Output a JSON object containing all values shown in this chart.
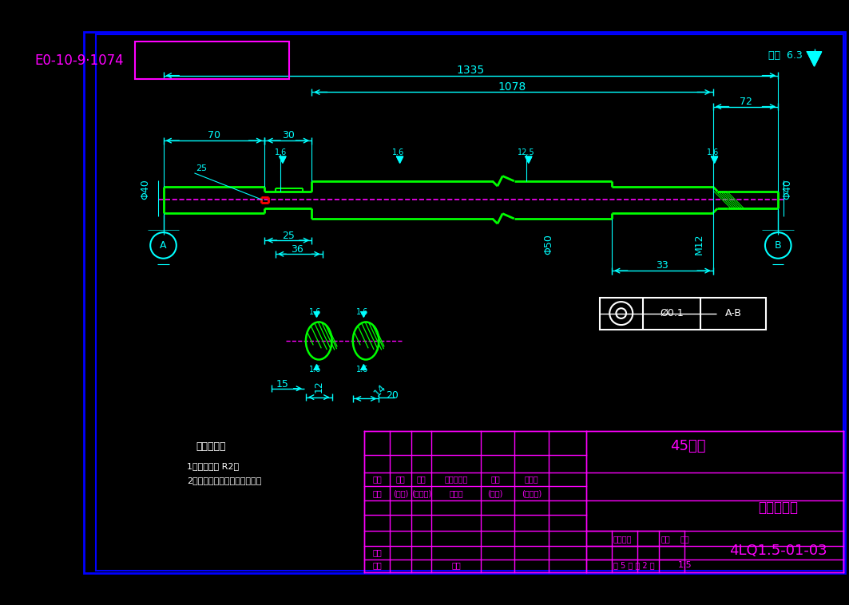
{
  "bg_color": "#000000",
  "border_color": "#0000ff",
  "cyan": "#00ffff",
  "green": "#00ff00",
  "magenta": "#ff00ff",
  "white": "#ffffff",
  "red": "#ff0000",
  "title_text": "4LQ1.5-01-03",
  "part_name": "扒龙传动轴",
  "material": "45号锢",
  "scale": "1:5",
  "sheet": "共 5 张 第 2 张",
  "tech_req_title": "技术要求：",
  "tech_req_1": "1、未注圆角 R2；",
  "tech_req_2": "2、与轴承配合处需渗碳处理。",
  "label_biaoji": "标记",
  "label_chushu": "处数",
  "label_fenqu": "分区",
  "label_gaiwen": "更改文件号",
  "label_qianming": "签名",
  "label_nianyueri": "年月日",
  "label_sheji": "设计",
  "label_qianming2": "(签名)",
  "label_nianyueri2": "(年月日)",
  "label_biaozhunhua": "标准化",
  "label_shenhe": "审核",
  "label_gongyi": "工艺",
  "label_pizhun": "批准",
  "label_jieduan": "阶段标记",
  "label_zhongliang": "重量",
  "label_bili": "比例",
  "label_qita": "其余"
}
